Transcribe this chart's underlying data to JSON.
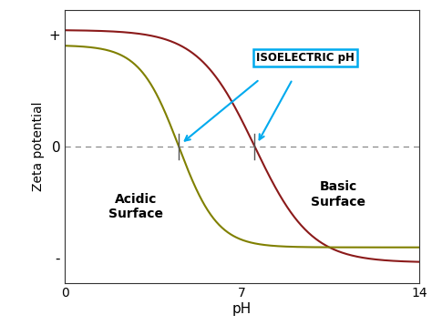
{
  "xlabel": "pH",
  "ylabel": "Zeta potential",
  "xlim": [
    0,
    14
  ],
  "curve1_color": "#8B1A1A",
  "curve1_isoelectric": 7.5,
  "curve2_color": "#808000",
  "curve2_isoelectric": 4.5,
  "curve1_steepness": 0.9,
  "curve2_steepness": 1.3,
  "dashed_line_color": "#888888",
  "isoelectric_box_color": "#00AAEE",
  "isoelectric_label": "ISOELECTRIC pH",
  "acidic_label": "Acidic\nSurface",
  "basic_label": "Basic\nSurface",
  "ytick_labels": [
    "+",
    "0",
    "-"
  ],
  "ytick_positions": [
    0.88,
    0.0,
    -0.88
  ],
  "xtick_positions": [
    0,
    7,
    14
  ],
  "background_color": "#ffffff"
}
